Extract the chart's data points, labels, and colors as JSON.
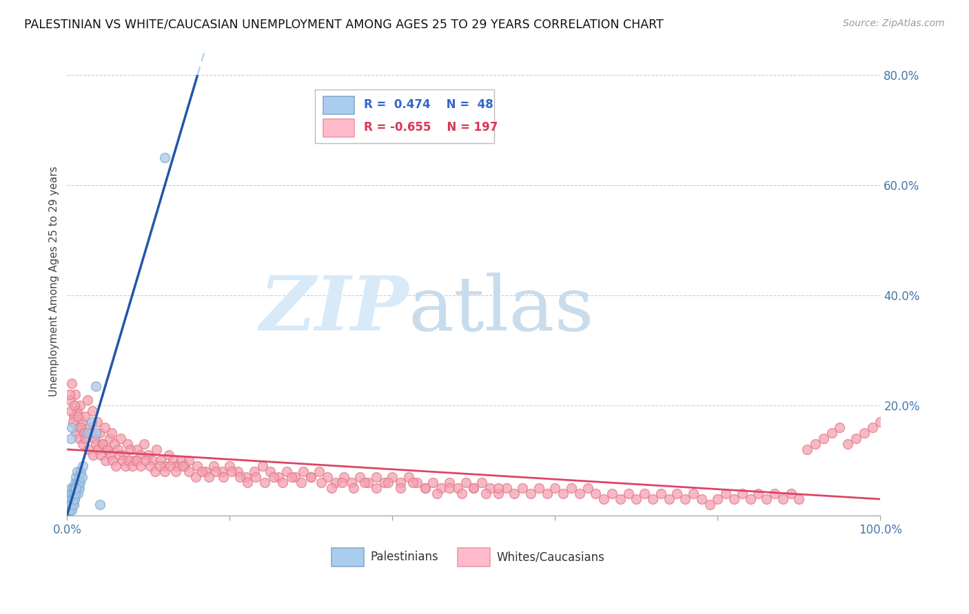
{
  "title": "PALESTINIAN VS WHITE/CAUCASIAN UNEMPLOYMENT AMONG AGES 25 TO 29 YEARS CORRELATION CHART",
  "source": "Source: ZipAtlas.com",
  "ylabel": "Unemployment Among Ages 25 to 29 years",
  "xlim": [
    0,
    1.0
  ],
  "ylim": [
    0,
    0.85
  ],
  "yticks_right": [
    0.2,
    0.4,
    0.6,
    0.8
  ],
  "yticklabels_right": [
    "20.0%",
    "40.0%",
    "60.0%",
    "80.0%"
  ],
  "blue_color": "#A8C8E8",
  "blue_edge": "#7AAACE",
  "pink_color": "#F5A0B0",
  "pink_edge": "#E07888",
  "blue_line_color": "#2255AA",
  "blue_dash_color": "#AACCEE",
  "pink_line_color": "#DD4466",
  "blue_label": "Palestinians",
  "pink_label": "Whites/Caucasians",
  "legend_blue_r": "0.474",
  "legend_blue_n": "48",
  "legend_pink_r": "-0.655",
  "legend_pink_n": "197",
  "blue_scatter_x": [
    0.002,
    0.003,
    0.003,
    0.004,
    0.004,
    0.005,
    0.005,
    0.006,
    0.006,
    0.007,
    0.007,
    0.008,
    0.008,
    0.009,
    0.009,
    0.01,
    0.01,
    0.011,
    0.011,
    0.012,
    0.012,
    0.013,
    0.013,
    0.014,
    0.015,
    0.015,
    0.016,
    0.017,
    0.018,
    0.019,
    0.002,
    0.003,
    0.004,
    0.005,
    0.006,
    0.007,
    0.008,
    0.009,
    0.01,
    0.011,
    0.025,
    0.03,
    0.035,
    0.04,
    0.005,
    0.006,
    0.12,
    0.035
  ],
  "blue_scatter_y": [
    0.02,
    0.03,
    0.01,
    0.04,
    0.02,
    0.05,
    0.03,
    0.04,
    0.02,
    0.05,
    0.03,
    0.04,
    0.02,
    0.05,
    0.03,
    0.06,
    0.04,
    0.07,
    0.05,
    0.08,
    0.06,
    0.05,
    0.04,
    0.06,
    0.05,
    0.07,
    0.06,
    0.08,
    0.07,
    0.09,
    0.01,
    0.02,
    0.01,
    0.02,
    0.01,
    0.03,
    0.02,
    0.03,
    0.04,
    0.05,
    0.15,
    0.17,
    0.15,
    0.02,
    0.14,
    0.16,
    0.65,
    0.235
  ],
  "pink_scatter_x": [
    0.004,
    0.006,
    0.008,
    0.01,
    0.012,
    0.014,
    0.016,
    0.018,
    0.02,
    0.022,
    0.025,
    0.028,
    0.031,
    0.034,
    0.037,
    0.04,
    0.043,
    0.046,
    0.049,
    0.052,
    0.055,
    0.058,
    0.062,
    0.066,
    0.07,
    0.074,
    0.078,
    0.082,
    0.086,
    0.09,
    0.095,
    0.1,
    0.105,
    0.11,
    0.115,
    0.12,
    0.125,
    0.13,
    0.135,
    0.14,
    0.145,
    0.15,
    0.16,
    0.17,
    0.18,
    0.19,
    0.2,
    0.21,
    0.22,
    0.23,
    0.24,
    0.25,
    0.26,
    0.27,
    0.28,
    0.29,
    0.3,
    0.31,
    0.32,
    0.33,
    0.34,
    0.35,
    0.36,
    0.37,
    0.38,
    0.39,
    0.4,
    0.41,
    0.42,
    0.43,
    0.44,
    0.45,
    0.46,
    0.47,
    0.48,
    0.49,
    0.5,
    0.51,
    0.52,
    0.53,
    0.54,
    0.55,
    0.56,
    0.57,
    0.58,
    0.59,
    0.6,
    0.61,
    0.62,
    0.63,
    0.64,
    0.65,
    0.66,
    0.67,
    0.68,
    0.69,
    0.7,
    0.71,
    0.72,
    0.73,
    0.74,
    0.75,
    0.76,
    0.77,
    0.78,
    0.79,
    0.8,
    0.81,
    0.82,
    0.83,
    0.84,
    0.85,
    0.86,
    0.87,
    0.88,
    0.89,
    0.9,
    0.91,
    0.92,
    0.93,
    0.94,
    0.95,
    0.96,
    0.97,
    0.98,
    0.99,
    1.0,
    0.003,
    0.005,
    0.007,
    0.009,
    0.011,
    0.013,
    0.015,
    0.017,
    0.019,
    0.021,
    0.023,
    0.026,
    0.029,
    0.032,
    0.035,
    0.038,
    0.041,
    0.044,
    0.047,
    0.05,
    0.053,
    0.056,
    0.06,
    0.064,
    0.068,
    0.072,
    0.076,
    0.08,
    0.085,
    0.09,
    0.096,
    0.102,
    0.108,
    0.114,
    0.12,
    0.127,
    0.134,
    0.142,
    0.15,
    0.158,
    0.166,
    0.174,
    0.183,
    0.192,
    0.202,
    0.212,
    0.222,
    0.232,
    0.243,
    0.254,
    0.265,
    0.276,
    0.288,
    0.3,
    0.312,
    0.325,
    0.338,
    0.352,
    0.366,
    0.38,
    0.395,
    0.41,
    0.425,
    0.44,
    0.455,
    0.47,
    0.485,
    0.5,
    0.515,
    0.53
  ],
  "pink_scatter_y": [
    0.21,
    0.24,
    0.18,
    0.22,
    0.19,
    0.16,
    0.2,
    0.17,
    0.15,
    0.18,
    0.21,
    0.16,
    0.19,
    0.14,
    0.17,
    0.15,
    0.13,
    0.16,
    0.12,
    0.14,
    0.15,
    0.13,
    0.12,
    0.14,
    0.11,
    0.13,
    0.12,
    0.1,
    0.12,
    0.11,
    0.13,
    0.11,
    0.1,
    0.12,
    0.1,
    0.09,
    0.11,
    0.1,
    0.09,
    0.1,
    0.09,
    0.1,
    0.09,
    0.08,
    0.09,
    0.08,
    0.09,
    0.08,
    0.07,
    0.08,
    0.09,
    0.08,
    0.07,
    0.08,
    0.07,
    0.08,
    0.07,
    0.08,
    0.07,
    0.06,
    0.07,
    0.06,
    0.07,
    0.06,
    0.07,
    0.06,
    0.07,
    0.06,
    0.07,
    0.06,
    0.05,
    0.06,
    0.05,
    0.06,
    0.05,
    0.06,
    0.05,
    0.06,
    0.05,
    0.04,
    0.05,
    0.04,
    0.05,
    0.04,
    0.05,
    0.04,
    0.05,
    0.04,
    0.05,
    0.04,
    0.05,
    0.04,
    0.03,
    0.04,
    0.03,
    0.04,
    0.03,
    0.04,
    0.03,
    0.04,
    0.03,
    0.04,
    0.03,
    0.04,
    0.03,
    0.02,
    0.03,
    0.04,
    0.03,
    0.04,
    0.03,
    0.04,
    0.03,
    0.04,
    0.03,
    0.04,
    0.03,
    0.12,
    0.13,
    0.14,
    0.15,
    0.16,
    0.13,
    0.14,
    0.15,
    0.16,
    0.17,
    0.22,
    0.19,
    0.17,
    0.2,
    0.15,
    0.18,
    0.14,
    0.16,
    0.13,
    0.15,
    0.14,
    0.12,
    0.15,
    0.11,
    0.13,
    0.12,
    0.11,
    0.13,
    0.1,
    0.12,
    0.11,
    0.1,
    0.09,
    0.11,
    0.1,
    0.09,
    0.1,
    0.09,
    0.1,
    0.09,
    0.1,
    0.09,
    0.08,
    0.09,
    0.08,
    0.09,
    0.08,
    0.09,
    0.08,
    0.07,
    0.08,
    0.07,
    0.08,
    0.07,
    0.08,
    0.07,
    0.06,
    0.07,
    0.06,
    0.07,
    0.06,
    0.07,
    0.06,
    0.07,
    0.06,
    0.05,
    0.06,
    0.05,
    0.06,
    0.05,
    0.06,
    0.05,
    0.06,
    0.05,
    0.04,
    0.05,
    0.04,
    0.05,
    0.04,
    0.05
  ]
}
